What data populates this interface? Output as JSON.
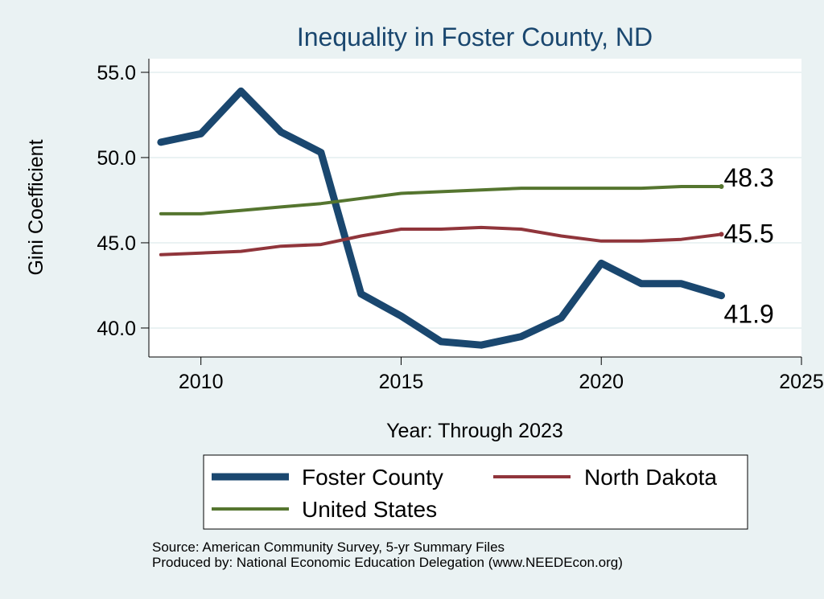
{
  "chart_data": {
    "type": "line",
    "title": "Inequality in Foster County, ND",
    "xlabel": "Year: Through 2023",
    "ylabel": "Gini Coefficient",
    "xlim": [
      2008.7,
      2025
    ],
    "ylim": [
      38.3,
      55.8
    ],
    "xticks": [
      2010,
      2015,
      2020,
      2025
    ],
    "yticks": [
      40,
      45,
      50,
      55
    ],
    "ytick_labels": [
      "40.0",
      "45.0",
      "50.0",
      "55.0"
    ],
    "grid": true,
    "legend_position": "bottom",
    "x": [
      2009,
      2010,
      2011,
      2012,
      2013,
      2014,
      2015,
      2016,
      2017,
      2018,
      2019,
      2020,
      2021,
      2022,
      2023
    ],
    "series": [
      {
        "name": "Foster County",
        "color": "#1a476f",
        "values": [
          50.9,
          51.4,
          53.9,
          51.5,
          50.3,
          42.0,
          40.7,
          39.2,
          39.0,
          39.5,
          40.6,
          43.8,
          42.6,
          42.6,
          41.9
        ],
        "end_label": "41.9"
      },
      {
        "name": "North Dakota",
        "color": "#90353b",
        "values": [
          44.3,
          44.4,
          44.5,
          44.8,
          44.9,
          45.4,
          45.8,
          45.8,
          45.9,
          45.8,
          45.4,
          45.1,
          45.1,
          45.2,
          45.5
        ],
        "end_label": "45.5"
      },
      {
        "name": "United States",
        "color": "#55752f",
        "values": [
          46.7,
          46.7,
          46.9,
          47.1,
          47.3,
          47.6,
          47.9,
          48.0,
          48.1,
          48.2,
          48.2,
          48.2,
          48.2,
          48.3,
          48.3
        ],
        "end_label": "48.3"
      }
    ]
  },
  "footer": {
    "source": "Source: American Community Survey, 5-yr Summary Files",
    "produced_by": "Produced by: National Economic Education Delegation (www.NEEDEcon.org)"
  }
}
